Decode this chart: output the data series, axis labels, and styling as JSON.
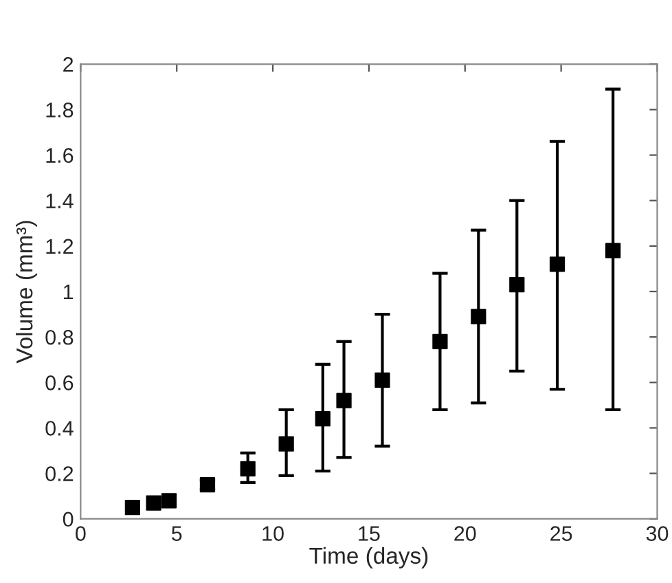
{
  "chart_data": {
    "type": "scatter",
    "xlabel": "Time (days)",
    "ylabel": "Volume (mm³)",
    "x": [
      2.7,
      3.8,
      4.6,
      6.6,
      8.7,
      10.7,
      12.6,
      13.7,
      15.7,
      18.7,
      20.7,
      22.7,
      24.8,
      27.7
    ],
    "values": [
      0.05,
      0.07,
      0.08,
      0.15,
      0.22,
      0.33,
      0.44,
      0.52,
      0.61,
      0.78,
      0.89,
      1.03,
      1.12,
      1.18
    ],
    "errors": [
      null,
      null,
      null,
      [
        0.13,
        0.17
      ],
      [
        0.16,
        0.29
      ],
      [
        0.19,
        0.48
      ],
      [
        0.21,
        0.68
      ],
      [
        0.27,
        0.78
      ],
      [
        0.32,
        0.9
      ],
      [
        0.48,
        1.08
      ],
      [
        0.51,
        1.27
      ],
      [
        0.65,
        1.4
      ],
      [
        0.57,
        1.66
      ],
      [
        0.48,
        1.89
      ]
    ],
    "color": "#000000",
    "marker": "square",
    "xlim": [
      0,
      30
    ],
    "xticks": [
      0,
      5,
      10,
      15,
      20,
      25,
      30
    ],
    "ylim": [
      0,
      2
    ],
    "yticks": [
      0,
      0.2,
      0.4,
      0.6,
      0.8,
      1,
      1.2,
      1.4,
      1.6,
      1.8,
      2
    ],
    "grid": false
  }
}
